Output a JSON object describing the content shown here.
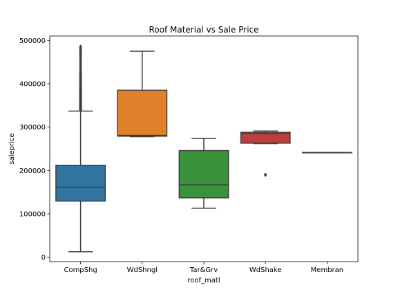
{
  "chart_data": {
    "type": "box",
    "title": "Roof Material vs Sale Price",
    "xlabel": "roof_matl",
    "ylabel": "saleprice",
    "ylim": [
      -10000,
      510000
    ],
    "yticks": [
      0,
      100000,
      200000,
      300000,
      400000,
      500000
    ],
    "grid": false,
    "categories": [
      "CompShg",
      "WdShngl",
      "Tar&Grv",
      "WdShake",
      "Membran"
    ],
    "colors": [
      "#3274a1",
      "#e1812c",
      "#3a923a",
      "#c03d3e",
      "#9372b2"
    ],
    "boxes": [
      {
        "category": "CompShg",
        "whisker_low": 12789,
        "q1": 129500,
        "median": 161500,
        "q3": 212000,
        "whisker_high": 337000,
        "outliers": [
          340000,
          342000,
          345000,
          348000,
          350000,
          352000,
          355000,
          358000,
          360000,
          363000,
          366000,
          370000,
          373000,
          376000,
          380000,
          383000,
          386000,
          390000,
          393000,
          397000,
          400000,
          403000,
          407000,
          410000,
          413000,
          417000,
          421000,
          425000,
          430000,
          435000,
          440000,
          445000,
          450000,
          455000,
          460000,
          465000,
          470000,
          475000,
          480000,
          485000
        ]
      },
      {
        "category": "WdShngl",
        "whisker_low": 278000,
        "q1": 279000,
        "median": 281000,
        "q3": 385000,
        "whisker_high": 475000,
        "outliers": []
      },
      {
        "category": "Tar&Grv",
        "whisker_low": 113000,
        "q1": 137000,
        "median": 167000,
        "q3": 246000,
        "whisker_high": 274000,
        "outliers": []
      },
      {
        "category": "WdShake",
        "whisker_low": 262000,
        "q1": 263000,
        "median": 285000,
        "q3": 288000,
        "whisker_high": 291000,
        "outliers": [
          190000
        ]
      },
      {
        "category": "Membran",
        "whisker_low": 241500,
        "q1": 241500,
        "median": 241500,
        "q3": 241500,
        "whisker_high": 241500,
        "outliers": []
      }
    ]
  }
}
